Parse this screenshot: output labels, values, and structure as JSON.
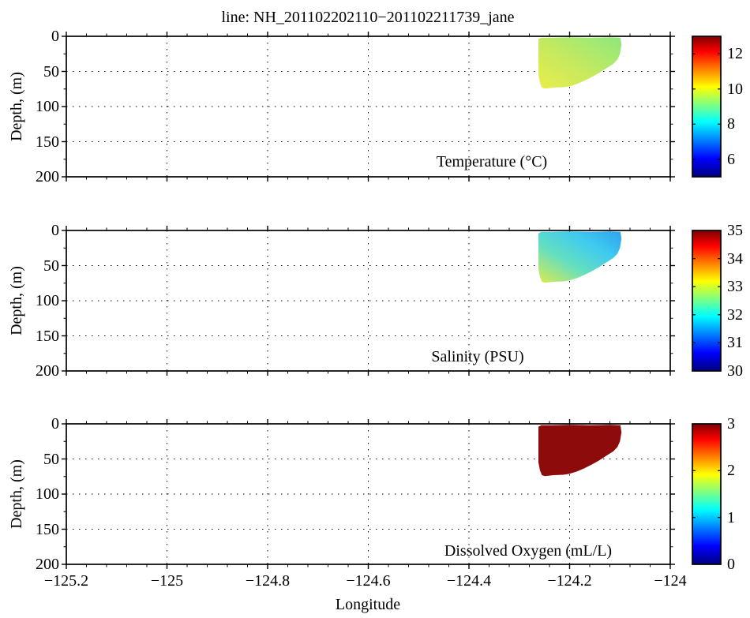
{
  "title": "line: NH_201102202110−201102211739_jane",
  "xlabel": "Longitude",
  "ylabel": "Depth, (m)",
  "axis": {
    "xlim": [
      -125.2,
      -124.0
    ],
    "x_ticks": [
      -125.2,
      -125.0,
      -124.8,
      -124.6,
      -124.4,
      -124.2,
      -124.0
    ],
    "x_tick_labels": [
      "−125.2",
      "−125",
      "−124.8",
      "−124.6",
      "−124.4",
      "−124.2",
      "−124"
    ],
    "x_minor_step": 0.04,
    "depth_lim": [
      0,
      200
    ],
    "depth_ticks": [
      0,
      50,
      100,
      150,
      200
    ],
    "depth_tick_labels": [
      "0",
      "50",
      "100",
      "150",
      "200"
    ],
    "depth_minor_step": 25,
    "grid_style": "dotted"
  },
  "colormap_stops": [
    [
      "0%",
      "#7f0000"
    ],
    [
      "11%",
      "#ff0000"
    ],
    [
      "36%",
      "#ffff00"
    ],
    [
      "61%",
      "#00ffff"
    ],
    [
      "87%",
      "#0000ff"
    ],
    [
      "100%",
      "#00007f"
    ]
  ],
  "panels": [
    {
      "id": "temperature",
      "caption": "Temperature (°C)",
      "clim": [
        5,
        13
      ],
      "cbar_ticks": [
        6,
        8,
        10,
        12
      ],
      "fill": {
        "type": "gradient",
        "stops": [
          [
            "0%",
            "#e9ee4b"
          ],
          [
            "45%",
            "#c6e95e"
          ],
          [
            "80%",
            "#a2e973"
          ],
          [
            "100%",
            "#8fe57e"
          ]
        ]
      }
    },
    {
      "id": "salinity",
      "caption": "Salinity (PSU)",
      "clim": [
        30,
        35
      ],
      "cbar_ticks": [
        30,
        31,
        32,
        33,
        34,
        35
      ],
      "fill": {
        "type": "gradient",
        "stops": [
          [
            "0%",
            "#dcea4e"
          ],
          [
            "38%",
            "#63dfc0"
          ],
          [
            "70%",
            "#3fcaf0"
          ],
          [
            "100%",
            "#2fa2ec"
          ]
        ]
      }
    },
    {
      "id": "oxygen",
      "caption": "Dissolved Oxygen (mL/L)",
      "clim": [
        0,
        3
      ],
      "cbar_ticks": [
        0,
        1,
        2,
        3
      ],
      "fill": {
        "type": "solid",
        "color": "#8d0b0b"
      }
    }
  ],
  "section_polygon": [
    [
      -124.262,
      4
    ],
    [
      -124.256,
      2
    ],
    [
      -124.235,
      2
    ],
    [
      -124.2,
      1.5
    ],
    [
      -124.16,
      2
    ],
    [
      -124.12,
      1.5
    ],
    [
      -124.099,
      2
    ],
    [
      -124.097,
      12
    ],
    [
      -124.1,
      25
    ],
    [
      -124.105,
      33
    ],
    [
      -124.113,
      39
    ],
    [
      -124.126,
      45
    ],
    [
      -124.141,
      52
    ],
    [
      -124.156,
      58
    ],
    [
      -124.17,
      63
    ],
    [
      -124.186,
      68
    ],
    [
      -124.2,
      71
    ],
    [
      -124.212,
      72.5
    ],
    [
      -124.232,
      73
    ],
    [
      -124.249,
      74.5
    ],
    [
      -124.255,
      73
    ],
    [
      -124.259,
      66
    ],
    [
      -124.262,
      55
    ]
  ],
  "chart_data": [
    {
      "type": "heatmap",
      "title": "Temperature (°C)",
      "xlabel": "Longitude",
      "ylabel": "Depth, (m)",
      "xlim": [
        -125.2,
        -124.0
      ],
      "ylim": [
        200,
        0
      ],
      "x_ticks": [
        -125.2,
        -125.0,
        -124.8,
        -124.6,
        -124.4,
        -124.2,
        -124.0
      ],
      "y_ticks": [
        0,
        50,
        100,
        150,
        200
      ],
      "grid": true,
      "colormap": "jet",
      "clim": [
        5,
        13
      ],
      "colorbar_ticks": [
        6,
        8,
        10,
        12
      ],
      "data_extent": {
        "longitude": [
          -124.262,
          -124.097
        ],
        "depth_m": [
          0,
          75
        ]
      },
      "sample_points": [
        {
          "longitude": -124.26,
          "depth_m": 55,
          "value": 10.2
        },
        {
          "longitude": -124.25,
          "depth_m": 10,
          "value": 9.8
        },
        {
          "longitude": -124.2,
          "depth_m": 35,
          "value": 9.9
        },
        {
          "longitude": -124.15,
          "depth_m": 10,
          "value": 9.4
        },
        {
          "longitude": -124.11,
          "depth_m": 25,
          "value": 9.3
        }
      ],
      "pattern": "Shelf section ~9.2-10.3 C: yellow (warmer ~10.2) near bottom-left inshore edge, yellow-green elsewhere, slightly greener (~9.3) toward surface at the offshore/right side"
    },
    {
      "type": "heatmap",
      "title": "Salinity (PSU)",
      "xlabel": "Longitude",
      "ylabel": "Depth, (m)",
      "xlim": [
        -125.2,
        -124.0
      ],
      "ylim": [
        200,
        0
      ],
      "x_ticks": [
        -125.2,
        -125.0,
        -124.8,
        -124.6,
        -124.4,
        -124.2,
        -124.0
      ],
      "y_ticks": [
        0,
        50,
        100,
        150,
        200
      ],
      "grid": true,
      "colormap": "jet",
      "clim": [
        30,
        35
      ],
      "colorbar_ticks": [
        30,
        31,
        32,
        33,
        34,
        35
      ],
      "data_extent": {
        "longitude": [
          -124.262,
          -124.097
        ],
        "depth_m": [
          0,
          75
        ]
      },
      "sample_points": [
        {
          "longitude": -124.26,
          "depth_m": 70,
          "value": 33.2
        },
        {
          "longitude": -124.24,
          "depth_m": 40,
          "value": 32.6
        },
        {
          "longitude": -124.2,
          "depth_m": 20,
          "value": 32.1
        },
        {
          "longitude": -124.14,
          "depth_m": 10,
          "value": 31.6
        },
        {
          "longitude": -124.11,
          "depth_m": 5,
          "value": 31.4
        }
      ],
      "pattern": "~31.4-33.2 PSU: fresher cyan-blue water near surface on right/offshore side, saltier yellow-green water at depth along the lower-left edge"
    },
    {
      "type": "heatmap",
      "title": "Dissolved Oxygen (mL/L)",
      "xlabel": "Longitude",
      "ylabel": "Depth, (m)",
      "xlim": [
        -125.2,
        -124.0
      ],
      "ylim": [
        200,
        0
      ],
      "x_ticks": [
        -125.2,
        -125.0,
        -124.8,
        -124.6,
        -124.4,
        -124.2,
        -124.0
      ],
      "y_ticks": [
        0,
        50,
        100,
        150,
        200
      ],
      "grid": true,
      "colormap": "jet",
      "clim": [
        0,
        3
      ],
      "colorbar_ticks": [
        0,
        1,
        2,
        3
      ],
      "data_extent": {
        "longitude": [
          -124.262,
          -124.097
        ],
        "depth_m": [
          0,
          75
        ]
      },
      "sample_points": [
        {
          "longitude": -124.2,
          "depth_m": 30,
          "value": 3
        }
      ],
      "pattern": "Uniform dark red: dissolved oxygen saturated at or above the colorbar maximum (>= 3 mL/L) over the whole sampled section"
    }
  ]
}
